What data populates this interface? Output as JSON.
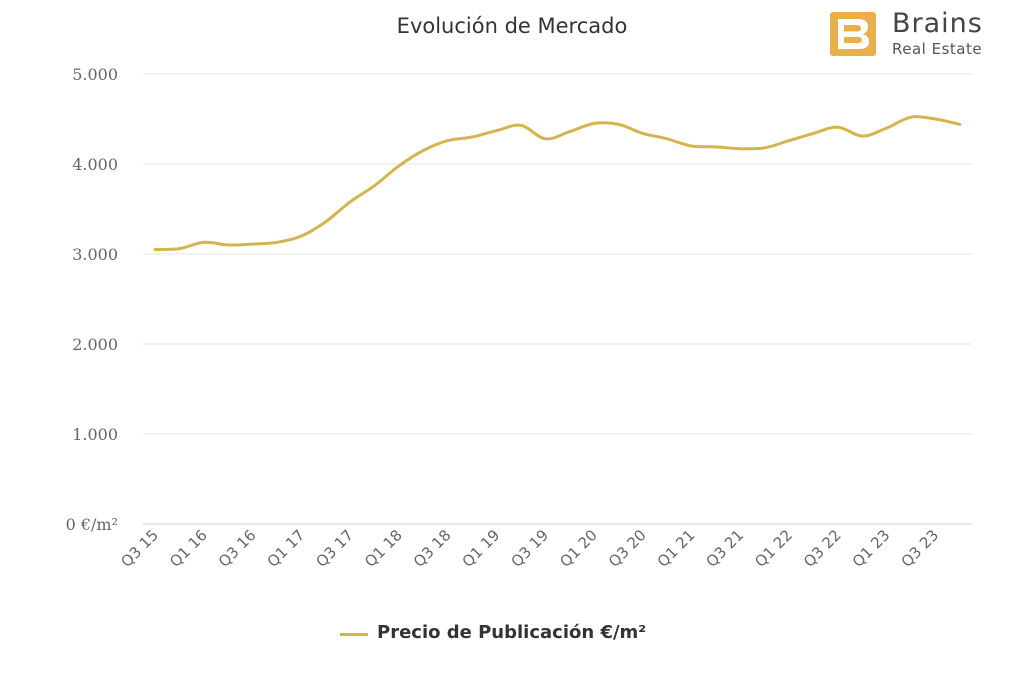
{
  "brand": {
    "name": "Brains",
    "tagline": "Real Estate",
    "color": "#E8B04A"
  },
  "chart_data": {
    "type": "line",
    "title": "Evolución de Mercado",
    "xlabel": "",
    "ylabel": "",
    "ylim": [
      0,
      5000
    ],
    "yticks": [
      {
        "value": 0,
        "label": "0 €/m²"
      },
      {
        "value": 1000,
        "label": "1.000"
      },
      {
        "value": 2000,
        "label": "2.000"
      },
      {
        "value": 3000,
        "label": "3.000"
      },
      {
        "value": 4000,
        "label": "4.000"
      },
      {
        "value": 5000,
        "label": "5.000"
      }
    ],
    "categories": [
      "Q3 15",
      "Q4 15",
      "Q1 16",
      "Q2 16",
      "Q3 16",
      "Q4 16",
      "Q1 17",
      "Q2 17",
      "Q3 17",
      "Q4 17",
      "Q1 18",
      "Q2 18",
      "Q3 18",
      "Q4 18",
      "Q1 19",
      "Q2 19",
      "Q3 19",
      "Q4 19",
      "Q1 20",
      "Q2 20",
      "Q3 20",
      "Q4 20",
      "Q1 21",
      "Q2 21",
      "Q3 21",
      "Q4 21",
      "Q1 22",
      "Q2 22",
      "Q3 22",
      "Q4 22",
      "Q1 23",
      "Q2 23",
      "Q3 23",
      "Q4 23"
    ],
    "xtick_labels": [
      "Q3 15",
      "Q1 16",
      "Q3 16",
      "Q1 17",
      "Q3 17",
      "Q1 18",
      "Q3 18",
      "Q1 19",
      "Q3 19",
      "Q1 20",
      "Q3 20",
      "Q1 21",
      "Q3 21",
      "Q1 22",
      "Q3 22",
      "Q1 23",
      "Q3 23"
    ],
    "grid": true,
    "legend_position": "bottom-center",
    "series": [
      {
        "name": "Precio de Publicación €/m²",
        "color": "#D4B44F",
        "values": [
          3050,
          3060,
          3130,
          3100,
          3110,
          3130,
          3200,
          3360,
          3580,
          3760,
          3980,
          4150,
          4260,
          4300,
          4370,
          4430,
          4280,
          4360,
          4450,
          4440,
          4340,
          4280,
          4200,
          4190,
          4170,
          4180,
          4260,
          4340,
          4410,
          4310,
          4400,
          4520,
          4500,
          4440
        ]
      }
    ]
  }
}
